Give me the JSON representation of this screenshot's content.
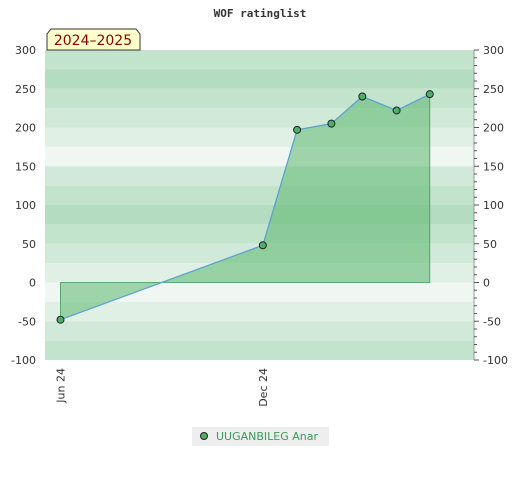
{
  "chart_data": {
    "type": "area",
    "title": "WOF ratinglist",
    "badge": "2024–2025",
    "xlabel": "",
    "ylabel": "",
    "ylim": [
      -100,
      300
    ],
    "yticks": [
      -100,
      -50,
      0,
      50,
      100,
      150,
      200,
      250,
      300
    ],
    "xlim": [
      "2024-05-18",
      "2025-06-10"
    ],
    "xticks": [
      {
        "label": "Jun 24",
        "date": "2024-06-01"
      },
      {
        "label": "Dec 24",
        "date": "2024-12-01"
      }
    ],
    "series": [
      {
        "name": "UUGANBILEG Anar",
        "points": [
          {
            "date": "2024-06-01",
            "value": -48
          },
          {
            "date": "2024-12-01",
            "value": 48
          },
          {
            "date": "2025-01-01",
            "value": 197
          },
          {
            "date": "2025-02-01",
            "value": 205
          },
          {
            "date": "2025-03-01",
            "value": 240
          },
          {
            "date": "2025-04-01",
            "value": 222
          },
          {
            "date": "2025-05-01",
            "value": 243
          }
        ]
      }
    ],
    "colors": {
      "fill": "#5cb870",
      "line": "#5aa0d8",
      "marker": "#4caf6a",
      "axis": "#999999"
    },
    "legend_position": "bottom-center",
    "grid": true
  }
}
